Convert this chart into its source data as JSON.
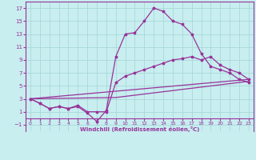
{
  "xlabel": "Windchill (Refroidissement éolien,°C)",
  "bg_color": "#c8eef0",
  "grid_color": "#a8d8da",
  "line_color": "#993399",
  "xlim": [
    -0.5,
    23.5
  ],
  "ylim": [
    -2.0,
    18.0
  ],
  "xticks": [
    0,
    1,
    2,
    3,
    4,
    5,
    6,
    7,
    8,
    9,
    10,
    11,
    12,
    13,
    14,
    15,
    16,
    17,
    18,
    19,
    20,
    21,
    22,
    23
  ],
  "yticks": [
    -1,
    1,
    3,
    5,
    7,
    9,
    11,
    13,
    15,
    17
  ],
  "curve1_x": [
    0,
    1,
    2,
    3,
    4,
    5,
    6,
    7,
    8,
    9,
    10,
    11,
    12,
    13,
    14,
    15,
    16,
    17,
    18,
    19,
    20,
    21,
    22,
    23
  ],
  "curve1_y": [
    3.0,
    2.3,
    1.5,
    1.8,
    1.5,
    1.8,
    0.8,
    -0.5,
    1.2,
    9.5,
    13.0,
    13.2,
    15.0,
    17.0,
    16.5,
    15.0,
    14.5,
    13.0,
    10.0,
    8.0,
    7.5,
    7.0,
    6.0,
    5.5
  ],
  "curve2_x": [
    0,
    1,
    2,
    3,
    4,
    5,
    6,
    7,
    8,
    9,
    10,
    11,
    12,
    13,
    14,
    15,
    16,
    17,
    18,
    19,
    20,
    21,
    22,
    23
  ],
  "curve2_y": [
    3.0,
    2.3,
    1.5,
    1.8,
    1.5,
    2.0,
    1.0,
    1.0,
    1.0,
    5.5,
    6.5,
    7.0,
    7.5,
    8.0,
    8.5,
    9.0,
    9.2,
    9.5,
    9.0,
    9.5,
    8.2,
    7.5,
    7.0,
    6.0
  ],
  "curve3_x": [
    0,
    23
  ],
  "curve3_y": [
    3.0,
    6.0
  ],
  "curve4_x": [
    0,
    9,
    23
  ],
  "curve4_y": [
    3.0,
    3.2,
    5.7
  ]
}
